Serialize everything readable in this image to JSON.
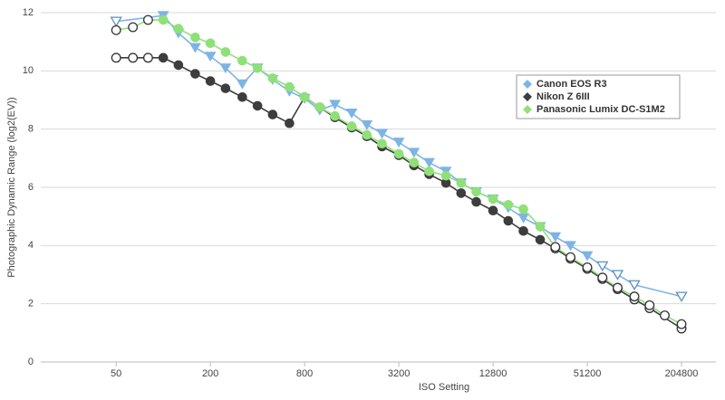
{
  "chart_data": {
    "type": "line",
    "xlabel": "ISO Setting",
    "ylabel": "Photographic Dynamic Range (log2(EV))",
    "xscale": "log",
    "xlim": [
      16.5,
      339800
    ],
    "xticks": [
      50,
      200,
      800,
      3200,
      12800,
      51200,
      204800
    ],
    "ylim": [
      0,
      12
    ],
    "yticks": [
      0,
      2,
      4,
      6,
      8,
      10,
      12
    ],
    "grid": true,
    "legend": "upper right",
    "series": [
      {
        "name": "Canon EOS R3",
        "color": "#7db4e6",
        "marker": "triangle-down",
        "x": [
          50,
          100,
          125,
          160,
          200,
          250,
          320,
          400,
          500,
          640,
          800,
          1000,
          1250,
          1600,
          2000,
          2500,
          3200,
          4000,
          5000,
          6400,
          8000,
          10000,
          12800,
          16000,
          20000,
          25600,
          32000,
          40000,
          51200,
          64000,
          80000,
          102400,
          204800
        ],
        "values": [
          11.7,
          11.9,
          11.3,
          10.8,
          10.5,
          10.1,
          9.55,
          10.1,
          9.7,
          9.3,
          9.05,
          8.65,
          8.85,
          8.55,
          8.15,
          7.85,
          7.55,
          7.2,
          6.85,
          6.55,
          6.15,
          5.85,
          5.6,
          5.3,
          4.95,
          4.65,
          4.3,
          4.0,
          3.65,
          3.3,
          3.0,
          2.65,
          2.25
        ],
        "hollow": [
          true,
          false,
          false,
          false,
          false,
          false,
          false,
          false,
          false,
          false,
          false,
          false,
          false,
          false,
          false,
          false,
          false,
          false,
          false,
          false,
          false,
          false,
          false,
          false,
          false,
          false,
          false,
          false,
          false,
          true,
          true,
          true,
          true
        ]
      },
      {
        "name": "Nikon Z 6III",
        "color": "#3d3d3d",
        "marker": "circle",
        "x": [
          50,
          64,
          80,
          100,
          125,
          160,
          200,
          250,
          320,
          400,
          500,
          640,
          800,
          1000,
          1250,
          1600,
          2000,
          2500,
          3200,
          4000,
          5000,
          6400,
          8000,
          10000,
          12800,
          16000,
          20000,
          25600,
          32000,
          40000,
          51200,
          64000,
          80000,
          102400,
          128000,
          204800
        ],
        "values": [
          10.45,
          10.45,
          10.45,
          10.45,
          10.2,
          9.9,
          9.65,
          9.4,
          9.1,
          8.8,
          8.5,
          8.2,
          9.1,
          8.75,
          8.4,
          8.05,
          7.75,
          7.4,
          7.1,
          6.75,
          6.45,
          6.15,
          5.8,
          5.5,
          5.2,
          4.85,
          4.5,
          4.2,
          3.9,
          3.55,
          3.2,
          2.85,
          2.5,
          2.15,
          1.85,
          1.15
        ],
        "hollow": [
          true,
          true,
          true,
          false,
          false,
          false,
          false,
          false,
          false,
          false,
          false,
          false,
          false,
          false,
          false,
          false,
          false,
          false,
          false,
          false,
          false,
          false,
          false,
          false,
          false,
          false,
          false,
          false,
          true,
          true,
          true,
          true,
          true,
          true,
          true,
          true
        ]
      },
      {
        "name": "Panasonic Lumix DC-S1M2",
        "color": "#90e07a",
        "marker": "circle",
        "x": [
          50,
          64,
          80,
          100,
          125,
          160,
          200,
          250,
          320,
          400,
          500,
          640,
          800,
          1000,
          1250,
          1600,
          2000,
          2500,
          3200,
          4000,
          5000,
          6400,
          8000,
          10000,
          12800,
          16000,
          20000,
          25600,
          32000,
          40000,
          51200,
          64000,
          80000,
          102400,
          128000,
          160000,
          204800
        ],
        "values": [
          11.4,
          11.5,
          11.75,
          11.75,
          11.45,
          11.15,
          10.95,
          10.65,
          10.35,
          10.1,
          9.75,
          9.45,
          9.1,
          8.75,
          8.45,
          8.1,
          7.8,
          7.5,
          7.15,
          6.85,
          6.55,
          6.4,
          6.15,
          5.85,
          5.6,
          5.4,
          5.25,
          4.65,
          3.95,
          3.6,
          3.25,
          2.9,
          2.55,
          2.25,
          1.95,
          1.6,
          1.3
        ],
        "hollow": [
          true,
          true,
          true,
          false,
          false,
          false,
          false,
          false,
          false,
          false,
          false,
          false,
          false,
          false,
          false,
          false,
          false,
          false,
          false,
          false,
          false,
          false,
          false,
          false,
          false,
          false,
          false,
          false,
          true,
          true,
          true,
          true,
          true,
          true,
          true,
          true,
          true
        ]
      }
    ]
  }
}
